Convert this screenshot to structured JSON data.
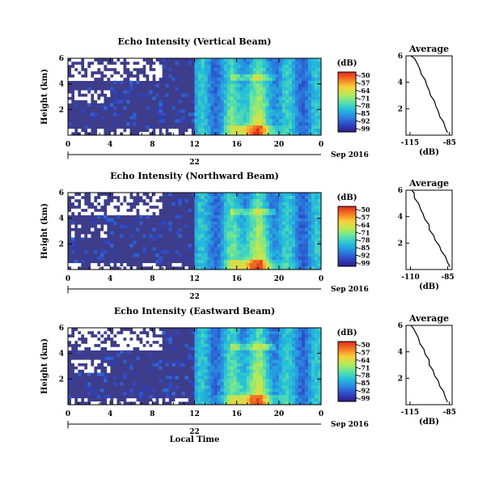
{
  "chart_data": [
    {
      "type": "heatmap",
      "title": "Echo Intensity (Vertical Beam)",
      "ylabel": "Height (km)",
      "xticks": [
        "0",
        "4",
        "8",
        "12",
        "16",
        "20",
        "0"
      ],
      "date_label": "22",
      "date_right": "Sep 2016",
      "xlim": [
        0,
        24
      ],
      "ylim": [
        0,
        6
      ],
      "yticks": [
        "2",
        "4",
        "6"
      ],
      "colorbar": {
        "unit": "(dB)",
        "ticks": [
          "-50",
          "-57",
          "-64",
          "-71",
          "-78",
          "-85",
          "-92",
          "-99"
        ]
      }
    },
    {
      "type": "line",
      "title": "Average",
      "xlabel": "(dB)",
      "xticks": [
        "-115",
        "-85"
      ],
      "yticks": [
        "2",
        "4",
        "6"
      ],
      "xlim": [
        -118,
        -83
      ],
      "ylim": [
        0,
        6
      ],
      "x": [
        -87,
        -88,
        -90,
        -92,
        -94,
        -95,
        -97,
        -99,
        -101,
        -102,
        -104,
        -106,
        -108,
        -109,
        -112,
        -114
      ],
      "y": [
        0.2,
        0.6,
        1.0,
        1.4,
        1.8,
        2.2,
        2.6,
        3.0,
        3.4,
        3.8,
        4.2,
        4.6,
        5.0,
        5.4,
        5.8,
        6.0
      ]
    },
    {
      "type": "heatmap",
      "title": "Echo Intensity (Northward Beam)",
      "ylabel": "Height (km)",
      "xticks": [
        "0",
        "4",
        "8",
        "12",
        "16",
        "20",
        "0"
      ],
      "date_label": "22",
      "date_right": "Sep 2016",
      "xlim": [
        0,
        24
      ],
      "ylim": [
        0,
        6
      ],
      "yticks": [
        "2",
        "4",
        "6"
      ],
      "colorbar": {
        "unit": "(dB)",
        "ticks": [
          "-50",
          "-57",
          "-64",
          "-71",
          "-78",
          "-85",
          "-92",
          "-99"
        ]
      }
    },
    {
      "type": "line",
      "title": "Average",
      "xlabel": "(dB)",
      "xticks": [
        "-110",
        "-85"
      ],
      "yticks": [
        "2",
        "4",
        "6"
      ],
      "xlim": [
        -113,
        -82
      ],
      "ylim": [
        0,
        6
      ],
      "x": [
        -84,
        -85,
        -87,
        -89,
        -91,
        -93,
        -95,
        -97,
        -98,
        -100,
        -102,
        -103,
        -105,
        -107,
        -108,
        -109
      ],
      "y": [
        0.2,
        0.6,
        1.0,
        1.4,
        1.8,
        2.2,
        2.6,
        3.0,
        3.4,
        3.8,
        4.2,
        4.6,
        5.0,
        5.4,
        5.8,
        6.0
      ]
    },
    {
      "type": "heatmap",
      "title": "Echo Intensity (Eastward Beam)",
      "ylabel": "Height (km)",
      "xticks": [
        "0",
        "4",
        "8",
        "12",
        "16",
        "20",
        "0"
      ],
      "date_label": "22",
      "date_right": "Sep 2016",
      "xlabel": "Local Time",
      "xlim": [
        0,
        24
      ],
      "ylim": [
        0,
        6
      ],
      "yticks": [
        "2",
        "4",
        "6"
      ],
      "colorbar": {
        "unit": "(dB)",
        "ticks": [
          "-50",
          "-57",
          "-64",
          "-71",
          "-78",
          "-85",
          "-92",
          "-99"
        ]
      }
    },
    {
      "type": "line",
      "title": "Average",
      "xlabel": "(dB)",
      "xticks": [
        "-115",
        "-85"
      ],
      "yticks": [
        "2",
        "4",
        "6"
      ],
      "xlim": [
        -118,
        -83
      ],
      "ylim": [
        0,
        6
      ],
      "x": [
        -87,
        -88,
        -90,
        -92,
        -94,
        -96,
        -98,
        -100,
        -101,
        -103,
        -105,
        -107,
        -109,
        -110,
        -113,
        -114
      ],
      "y": [
        0.2,
        0.6,
        1.0,
        1.4,
        1.8,
        2.2,
        2.6,
        3.0,
        3.4,
        3.8,
        4.2,
        4.6,
        5.0,
        5.4,
        5.8,
        6.0
      ]
    }
  ],
  "colors": {
    "background_blue": "#3d3d8c",
    "colormap": [
      "#2b1f84",
      "#2f47c8",
      "#2a86e0",
      "#23bfdc",
      "#5fe3a6",
      "#b8ea55",
      "#f8d03a",
      "#f47a23",
      "#e0281e"
    ]
  }
}
